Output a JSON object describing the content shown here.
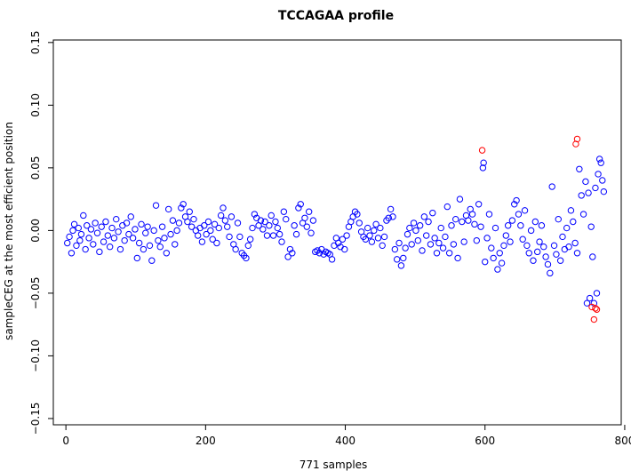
{
  "chart_data": {
    "type": "scatter",
    "title": "TCCAGAA profile",
    "xlabel": "771 samples",
    "ylabel": "sampleCEG at the most efficient position",
    "xlim": [
      -18,
      795
    ],
    "ylim": [
      -0.155,
      0.152
    ],
    "x_ticks": [
      0,
      200,
      400,
      600,
      800
    ],
    "y_ticks": [
      -0.15,
      -0.1,
      -0.05,
      0.0,
      0.05,
      0.1,
      0.15
    ],
    "x_tick_labels": [
      "0",
      "200",
      "400",
      "600",
      "800"
    ],
    "y_tick_labels": [
      "−0.15",
      "−0.10",
      "−0.05",
      "0.00",
      "0.05",
      "0.10",
      "0.15"
    ],
    "marker": "open-circle",
    "grid": false,
    "legend": "none",
    "series": [
      {
        "color": "#0000ff",
        "points": [
          [
            2,
            -0.01
          ],
          [
            5,
            -0.005
          ],
          [
            8,
            -0.018
          ],
          [
            10,
            0.0
          ],
          [
            12,
            0.005
          ],
          [
            15,
            -0.012
          ],
          [
            18,
            0.002
          ],
          [
            20,
            -0.008
          ],
          [
            22,
            -0.003
          ],
          [
            25,
            0.012
          ],
          [
            28,
            -0.015
          ],
          [
            30,
            0.004
          ],
          [
            33,
            -0.006
          ],
          [
            36,
            0.001
          ],
          [
            39,
            -0.011
          ],
          [
            42,
            0.006
          ],
          [
            45,
            -0.002
          ],
          [
            48,
            -0.017
          ],
          [
            51,
            0.003
          ],
          [
            54,
            -0.009
          ],
          [
            57,
            0.007
          ],
          [
            60,
            -0.004
          ],
          [
            63,
            -0.013
          ],
          [
            66,
            0.002
          ],
          [
            69,
            -0.006
          ],
          [
            72,
            0.009
          ],
          [
            75,
            -0.001
          ],
          [
            78,
            -0.015
          ],
          [
            81,
            0.004
          ],
          [
            84,
            -0.008
          ],
          [
            87,
            0.006
          ],
          [
            90,
            -0.003
          ],
          [
            93,
            0.011
          ],
          [
            96,
            -0.006
          ],
          [
            99,
            0.001
          ],
          [
            102,
            -0.022
          ],
          [
            105,
            -0.01
          ],
          [
            108,
            0.005
          ],
          [
            111,
            -0.015
          ],
          [
            114,
            -0.002
          ],
          [
            117,
            0.003
          ],
          [
            120,
            -0.012
          ],
          [
            123,
            -0.024
          ],
          [
            126,
            0.0
          ],
          [
            129,
            0.02
          ],
          [
            132,
            -0.008
          ],
          [
            135,
            -0.013
          ],
          [
            138,
            0.003
          ],
          [
            141,
            -0.006
          ],
          [
            144,
            -0.018
          ],
          [
            147,
            0.017
          ],
          [
            150,
            -0.003
          ],
          [
            153,
            0.008
          ],
          [
            156,
            -0.011
          ],
          [
            159,
            0.0
          ],
          [
            162,
            0.006
          ],
          [
            165,
            0.018
          ],
          [
            168,
            0.021
          ],
          [
            171,
            0.011
          ],
          [
            174,
            0.007
          ],
          [
            177,
            0.015
          ],
          [
            180,
            0.003
          ],
          [
            183,
            0.009
          ],
          [
            186,
            0.0
          ],
          [
            189,
            -0.004
          ],
          [
            192,
            0.002
          ],
          [
            195,
            -0.009
          ],
          [
            198,
            0.004
          ],
          [
            201,
            -0.003
          ],
          [
            204,
            0.007
          ],
          [
            207,
            0.0
          ],
          [
            210,
            -0.007
          ],
          [
            213,
            0.005
          ],
          [
            216,
            -0.01
          ],
          [
            219,
            0.002
          ],
          [
            222,
            0.012
          ],
          [
            225,
            0.018
          ],
          [
            228,
            0.008
          ],
          [
            231,
            0.003
          ],
          [
            234,
            -0.005
          ],
          [
            237,
            0.011
          ],
          [
            240,
            -0.011
          ],
          [
            243,
            -0.015
          ],
          [
            246,
            0.006
          ],
          [
            249,
            -0.005
          ],
          [
            252,
            -0.018
          ],
          [
            255,
            -0.02
          ],
          [
            258,
            -0.022
          ],
          [
            261,
            -0.012
          ],
          [
            264,
            -0.007
          ],
          [
            267,
            0.002
          ],
          [
            270,
            0.013
          ],
          [
            273,
            0.01
          ],
          [
            276,
            0.004
          ],
          [
            279,
            0.008
          ],
          [
            282,
            0.001
          ],
          [
            285,
            0.007
          ],
          [
            288,
            -0.004
          ],
          [
            291,
            0.004
          ],
          [
            294,
            0.012
          ],
          [
            297,
            -0.004
          ],
          [
            300,
            0.007
          ],
          [
            303,
            0.002
          ],
          [
            306,
            -0.003
          ],
          [
            309,
            -0.009
          ],
          [
            312,
            0.015
          ],
          [
            315,
            0.009
          ],
          [
            318,
            -0.021
          ],
          [
            321,
            -0.015
          ],
          [
            324,
            -0.018
          ],
          [
            327,
            0.004
          ],
          [
            330,
            -0.003
          ],
          [
            333,
            0.018
          ],
          [
            336,
            0.021
          ],
          [
            339,
            0.006
          ],
          [
            342,
            0.01
          ],
          [
            345,
            0.003
          ],
          [
            348,
            0.015
          ],
          [
            351,
            -0.002
          ],
          [
            354,
            0.008
          ],
          [
            357,
            -0.017
          ],
          [
            360,
            -0.016
          ],
          [
            363,
            -0.018
          ],
          [
            366,
            -0.015
          ],
          [
            369,
            -0.019
          ],
          [
            372,
            -0.017
          ],
          [
            375,
            -0.018
          ],
          [
            378,
            -0.019
          ],
          [
            381,
            -0.023
          ],
          [
            384,
            -0.012
          ],
          [
            387,
            -0.006
          ],
          [
            390,
            -0.01
          ],
          [
            393,
            -0.013
          ],
          [
            396,
            -0.007
          ],
          [
            399,
            -0.015
          ],
          [
            402,
            -0.004
          ],
          [
            405,
            0.003
          ],
          [
            408,
            0.007
          ],
          [
            411,
            0.011
          ],
          [
            414,
            0.015
          ],
          [
            417,
            0.013
          ],
          [
            420,
            0.006
          ],
          [
            423,
            -0.001
          ],
          [
            426,
            -0.005
          ],
          [
            429,
            -0.007
          ],
          [
            432,
            0.002
          ],
          [
            435,
            -0.004
          ],
          [
            438,
            -0.009
          ],
          [
            441,
            0.0
          ],
          [
            444,
            0.005
          ],
          [
            447,
            -0.006
          ],
          [
            450,
            0.002
          ],
          [
            453,
            -0.012
          ],
          [
            456,
            -0.005
          ],
          [
            459,
            0.008
          ],
          [
            462,
            0.01
          ],
          [
            465,
            0.017
          ],
          [
            468,
            0.011
          ],
          [
            471,
            -0.015
          ],
          [
            474,
            -0.023
          ],
          [
            477,
            -0.01
          ],
          [
            480,
            -0.028
          ],
          [
            483,
            -0.022
          ],
          [
            486,
            -0.014
          ],
          [
            489,
            -0.003
          ],
          [
            492,
            0.002
          ],
          [
            495,
            -0.011
          ],
          [
            498,
            0.006
          ],
          [
            501,
            0.0
          ],
          [
            504,
            -0.008
          ],
          [
            507,
            0.004
          ],
          [
            510,
            -0.016
          ],
          [
            513,
            0.011
          ],
          [
            516,
            -0.004
          ],
          [
            519,
            0.007
          ],
          [
            522,
            -0.011
          ],
          [
            525,
            0.014
          ],
          [
            528,
            -0.006
          ],
          [
            531,
            -0.018
          ],
          [
            534,
            -0.01
          ],
          [
            537,
            0.002
          ],
          [
            540,
            -0.014
          ],
          [
            543,
            -0.005
          ],
          [
            546,
            0.019
          ],
          [
            549,
            -0.018
          ],
          [
            552,
            0.004
          ],
          [
            555,
            -0.011
          ],
          [
            558,
            0.009
          ],
          [
            561,
            -0.022
          ],
          [
            564,
            0.025
          ],
          [
            567,
            0.007
          ],
          [
            570,
            -0.009
          ],
          [
            573,
            0.012
          ],
          [
            576,
            0.008
          ],
          [
            579,
            0.017
          ],
          [
            582,
            0.013
          ],
          [
            585,
            0.005
          ],
          [
            588,
            -0.008
          ],
          [
            591,
            0.021
          ],
          [
            594,
            0.003
          ],
          [
            597,
            0.05
          ],
          [
            598,
            0.054
          ],
          [
            600,
            -0.025
          ],
          [
            603,
            -0.006
          ],
          [
            606,
            0.013
          ],
          [
            609,
            -0.014
          ],
          [
            612,
            -0.022
          ],
          [
            615,
            0.002
          ],
          [
            618,
            -0.031
          ],
          [
            621,
            -0.018
          ],
          [
            624,
            -0.026
          ],
          [
            627,
            -0.012
          ],
          [
            630,
            -0.004
          ],
          [
            633,
            0.004
          ],
          [
            636,
            -0.009
          ],
          [
            639,
            0.008
          ],
          [
            642,
            0.021
          ],
          [
            645,
            0.024
          ],
          [
            648,
            0.013
          ],
          [
            651,
            0.004
          ],
          [
            654,
            -0.007
          ],
          [
            657,
            0.016
          ],
          [
            660,
            -0.012
          ],
          [
            663,
            -0.018
          ],
          [
            666,
            0.0
          ],
          [
            669,
            -0.024
          ],
          [
            672,
            0.007
          ],
          [
            675,
            -0.017
          ],
          [
            678,
            -0.009
          ],
          [
            681,
            0.004
          ],
          [
            684,
            -0.013
          ],
          [
            687,
            -0.021
          ],
          [
            690,
            -0.027
          ],
          [
            693,
            -0.034
          ],
          [
            696,
            0.035
          ],
          [
            699,
            -0.012
          ],
          [
            702,
            -0.019
          ],
          [
            705,
            0.009
          ],
          [
            708,
            -0.024
          ],
          [
            711,
            -0.005
          ],
          [
            714,
            -0.015
          ],
          [
            717,
            0.002
          ],
          [
            720,
            -0.013
          ],
          [
            723,
            0.016
          ],
          [
            726,
            0.007
          ],
          [
            729,
            -0.01
          ],
          [
            732,
            -0.018
          ],
          [
            735,
            0.049
          ],
          [
            738,
            0.028
          ],
          [
            741,
            0.013
          ],
          [
            744,
            0.039
          ],
          [
            746,
            -0.058
          ],
          [
            748,
            0.03
          ],
          [
            750,
            -0.054
          ],
          [
            752,
            0.003
          ],
          [
            754,
            -0.021
          ],
          [
            756,
            -0.058
          ],
          [
            758,
            0.034
          ],
          [
            760,
            -0.05
          ],
          [
            762,
            0.045
          ],
          [
            764,
            0.057
          ],
          [
            766,
            0.054
          ],
          [
            768,
            0.04
          ],
          [
            770,
            0.031
          ]
        ]
      },
      {
        "color": "#ff0000",
        "points": [
          [
            596,
            0.064
          ],
          [
            730,
            0.069
          ],
          [
            732,
            0.073
          ],
          [
            753,
            -0.061
          ],
          [
            756,
            -0.071
          ],
          [
            758,
            -0.062
          ],
          [
            760,
            -0.063
          ]
        ]
      }
    ]
  }
}
